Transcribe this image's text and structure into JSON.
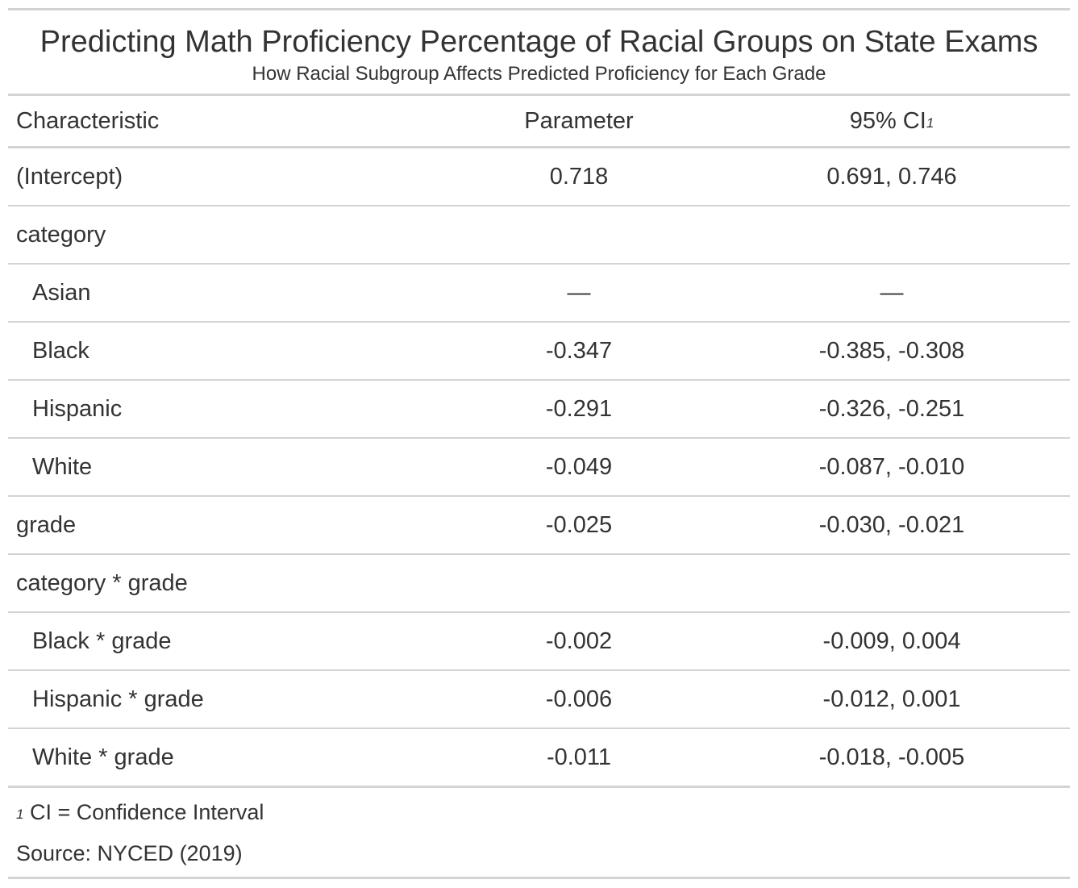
{
  "chart_data": {
    "type": "table",
    "title": "Predicting Math Proficiency Percentage of Racial Groups on State Exams",
    "subtitle": "How Racial Subgroup Affects Predicted Proficiency for Each Grade",
    "columns": [
      "Characteristic",
      "Parameter",
      "95% CI"
    ],
    "ci_footnote_mark": "1",
    "rows": [
      {
        "label": "(Intercept)",
        "indent": false,
        "parameter": "0.718",
        "ci": "0.691, 0.746"
      },
      {
        "label": "category",
        "indent": false,
        "parameter": "",
        "ci": ""
      },
      {
        "label": "Asian",
        "indent": true,
        "parameter": "—",
        "ci": "—"
      },
      {
        "label": "Black",
        "indent": true,
        "parameter": "-0.347",
        "ci": "-0.385, -0.308"
      },
      {
        "label": "Hispanic",
        "indent": true,
        "parameter": "-0.291",
        "ci": "-0.326, -0.251"
      },
      {
        "label": "White",
        "indent": true,
        "parameter": "-0.049",
        "ci": "-0.087, -0.010"
      },
      {
        "label": "grade",
        "indent": false,
        "parameter": "-0.025",
        "ci": "-0.030, -0.021"
      },
      {
        "label": "category * grade",
        "indent": false,
        "parameter": "",
        "ci": ""
      },
      {
        "label": "Black * grade",
        "indent": true,
        "parameter": "-0.002",
        "ci": "-0.009, 0.004"
      },
      {
        "label": "Hispanic * grade",
        "indent": true,
        "parameter": "-0.006",
        "ci": "-0.012, 0.001"
      },
      {
        "label": "White * grade",
        "indent": true,
        "parameter": "-0.011",
        "ci": "-0.018, -0.005"
      }
    ],
    "footnote_mark": "1",
    "footnote": "CI = Confidence Interval",
    "source": "Source: NYCED (2019)"
  },
  "colors": {
    "text": "#333333",
    "rule": "#d3d3d3"
  }
}
